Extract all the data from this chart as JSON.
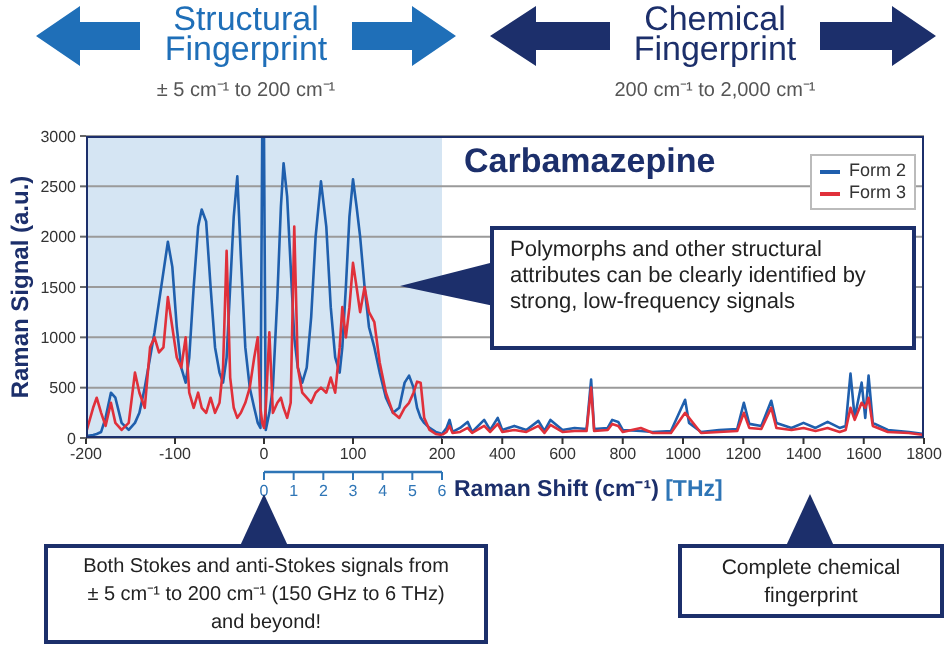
{
  "chart_data": [
    {
      "type": "line",
      "xlabel": "Raman Shift (cm⁻¹)",
      "ylabel": "Raman Signal (a.u.)",
      "x2label": "[THz]",
      "annotations": [
        "Structural Fingerprint",
        "± 5 cm⁻¹ to 200 cm⁻¹",
        "Both Stokes and anti-Stokes signals from ± 5 cm⁻¹ to 200 cm⁻¹ (150 GHz to 6 THz) and beyond!"
      ],
      "x": [
        -200,
        -192,
        -188,
        -183,
        -178,
        -172,
        -167,
        -160,
        -152,
        -145,
        -140,
        -134,
        -128,
        -123,
        -118,
        -113,
        -108,
        -103,
        -98,
        -93,
        -88,
        -84,
        -79,
        -74,
        -70,
        -65,
        -60,
        -55,
        -50,
        -46,
        -42,
        -38,
        -34,
        -30,
        -26,
        -21,
        -16,
        -11,
        -7,
        -4,
        -2,
        0,
        2,
        6,
        10,
        15,
        19,
        22,
        26,
        30,
        34,
        38,
        43,
        48,
        53,
        58,
        64,
        70,
        75,
        80,
        85,
        88,
        92,
        96,
        100,
        104,
        108,
        113,
        118,
        124,
        130,
        137,
        145,
        152,
        158,
        163,
        168,
        172,
        176,
        180,
        186,
        193,
        200
      ],
      "series": [
        {
          "color": "#1f5fad",
          "values": [
            20,
            30,
            40,
            60,
            200,
            450,
            400,
            150,
            80,
            150,
            250,
            500,
            800,
            1050,
            1350,
            1650,
            1950,
            1700,
            1100,
            700,
            550,
            800,
            1500,
            2100,
            2270,
            2150,
            1500,
            900,
            650,
            550,
            800,
            1500,
            2200,
            2600,
            1800,
            900,
            500,
            300,
            150,
            100,
            3000,
            3000,
            80,
            250,
            500,
            1400,
            2300,
            2730,
            2400,
            1700,
            1000,
            700,
            550,
            700,
            1200,
            2000,
            2550,
            2100,
            1300,
            800,
            650,
            900,
            1500,
            2200,
            2570,
            2300,
            2000,
            1500,
            1100,
            900,
            650,
            400,
            250,
            300,
            550,
            620,
            500,
            300,
            200,
            150,
            100,
            60,
            40
          ]
        },
        {
          "color": "#e0303a",
          "values": [
            50,
            300,
            400,
            250,
            120,
            350,
            150,
            80,
            150,
            650,
            450,
            300,
            900,
            1000,
            850,
            900,
            1400,
            1100,
            800,
            700,
            1000,
            450,
            300,
            450,
            300,
            250,
            400,
            250,
            350,
            700,
            1860,
            600,
            300,
            200,
            250,
            350,
            500,
            800,
            1000,
            300,
            150,
            100,
            300,
            1050,
            250,
            350,
            400,
            300,
            200,
            350,
            2100,
            700,
            450,
            400,
            350,
            450,
            500,
            450,
            600,
            450,
            900,
            1300,
            1000,
            1300,
            1740,
            1500,
            1250,
            1500,
            1250,
            1150,
            750,
            450,
            250,
            200,
            300,
            350,
            450,
            560,
            550,
            200,
            80,
            40,
            30
          ]
        }
      ],
      "xlim": [
        -200,
        200
      ],
      "xticks": [
        -200,
        -100,
        0,
        100,
        200
      ],
      "x2lim": [
        0,
        6
      ],
      "x2ticks": [
        0,
        1,
        2,
        3,
        4,
        5,
        6
      ],
      "ylim": [
        0,
        3000
      ],
      "yticks": [
        0,
        500,
        1000,
        1500,
        2000,
        2500,
        3000
      ],
      "bands": [
        {
          "axis": "x",
          "from": -200,
          "to": 200,
          "color": "#d5e5f3"
        }
      ],
      "grid": "y"
    },
    {
      "type": "line",
      "title": "Carbamazepine",
      "annotations": [
        "Chemical Fingerprint",
        "200 cm⁻¹ to 2,000 cm⁻¹",
        "Polymorphs and other structural attributes can be clearly identified by strong, low-frequency signals",
        "Complete chemical fingerprint"
      ],
      "x": [
        200,
        215,
        225,
        235,
        260,
        285,
        300,
        340,
        360,
        385,
        400,
        440,
        480,
        520,
        540,
        560,
        600,
        640,
        680,
        695,
        705,
        750,
        765,
        785,
        800,
        860,
        900,
        960,
        1007,
        1020,
        1060,
        1120,
        1180,
        1202,
        1220,
        1260,
        1293,
        1310,
        1360,
        1400,
        1440,
        1480,
        1520,
        1540,
        1556,
        1570,
        1593,
        1605,
        1616,
        1630,
        1680,
        1750,
        1800
      ],
      "series": [
        {
          "name": "Form 2",
          "color": "#1f5fad",
          "values": [
            40,
            100,
            180,
            60,
            100,
            160,
            60,
            180,
            80,
            200,
            80,
            120,
            80,
            170,
            70,
            180,
            80,
            100,
            90,
            580,
            90,
            100,
            180,
            160,
            80,
            70,
            60,
            70,
            380,
            150,
            60,
            80,
            90,
            350,
            140,
            120,
            370,
            150,
            100,
            150,
            100,
            160,
            100,
            120,
            640,
            200,
            550,
            200,
            620,
            150,
            80,
            60,
            40
          ]
        },
        {
          "name": "Form 3",
          "color": "#e0303a",
          "values": [
            30,
            60,
            120,
            50,
            60,
            100,
            50,
            120,
            60,
            140,
            60,
            80,
            60,
            120,
            50,
            130,
            60,
            70,
            70,
            500,
            70,
            80,
            140,
            120,
            60,
            100,
            50,
            50,
            250,
            200,
            50,
            60,
            70,
            250,
            100,
            90,
            300,
            100,
            80,
            100,
            70,
            100,
            60,
            80,
            300,
            180,
            350,
            300,
            400,
            120,
            60,
            50,
            30
          ]
        }
      ],
      "xlim": [
        200,
        1800
      ],
      "xticks": [
        400,
        600,
        800,
        1000,
        1200,
        1400,
        1600,
        1800
      ],
      "ylim": [
        0,
        3000
      ],
      "yticks": [
        0,
        500,
        1000,
        1500,
        2000,
        2500,
        3000
      ],
      "tick_labels": "x",
      "grid": "y",
      "legend": "top right"
    }
  ]
}
